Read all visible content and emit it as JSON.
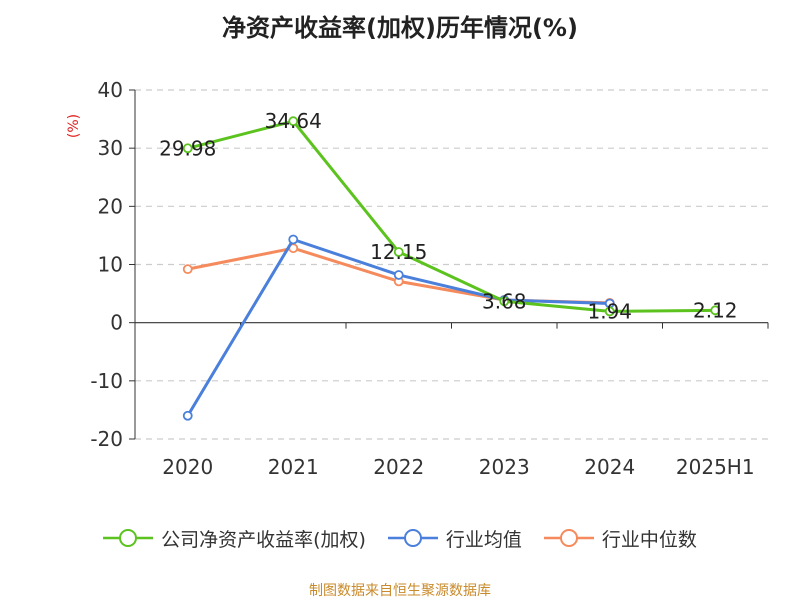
{
  "title": "净资产收益率(加权)历年情况(%)",
  "source": "制图数据来自恒生聚源数据库",
  "chart_data": {
    "type": "line",
    "title": "净资产收益率(加权)历年情况(%)",
    "y_unit_label": "(%)",
    "categories": [
      "2020",
      "2021",
      "2022",
      "2023",
      "2024",
      "2025H1"
    ],
    "ylim": [
      -20,
      40
    ],
    "yticks": [
      -20,
      -10,
      0,
      10,
      20,
      30,
      40
    ],
    "grid": true,
    "legend_position": "bottom",
    "series": [
      {
        "name": "公司净资产收益率(加权)",
        "color": "#5cc31e",
        "values": [
          29.98,
          34.64,
          12.15,
          3.68,
          1.94,
          2.12
        ],
        "labels": [
          "29.98",
          "34.64",
          "12.15",
          "3.68",
          "1.94",
          "2.12"
        ]
      },
      {
        "name": "行业均值",
        "color": "#4a7fdb",
        "values": [
          -16,
          14.3,
          8.2,
          3.9,
          3.3,
          null
        ],
        "labels": []
      },
      {
        "name": "行业中位数",
        "color": "#f58a5c",
        "values": [
          9.2,
          12.8,
          7.1,
          3.9,
          3.4,
          null
        ],
        "labels": []
      }
    ]
  }
}
